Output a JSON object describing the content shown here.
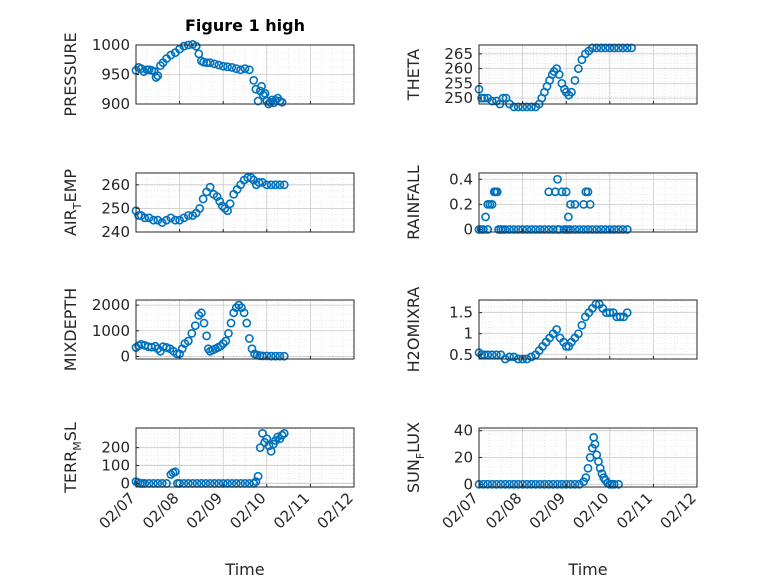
{
  "figure_title": "Figure 1 high",
  "colors": {
    "marker": "#0072bd",
    "axis": "#262626",
    "grid": "#d9d9d9"
  },
  "chart_data": [
    {
      "type": "scatter",
      "ylabel": "PRESSURE",
      "xlim": [
        0,
        5
      ],
      "ylim": [
        900,
        1000
      ],
      "yticks": [
        900,
        950,
        1000
      ],
      "ytick_labels": [
        "900",
        "950",
        "1000"
      ],
      "xticks": [
        0,
        1,
        2,
        3,
        4,
        5
      ],
      "x": [
        0,
        0.06,
        0.12,
        0.18,
        0.25,
        0.3,
        0.36,
        0.42,
        0.46,
        0.5,
        0.56,
        0.62,
        0.7,
        0.8,
        0.9,
        1.0,
        1.1,
        1.2,
        1.3,
        1.38,
        1.44,
        1.5,
        1.55,
        1.62,
        1.7,
        1.8,
        1.9,
        2.0,
        2.1,
        2.2,
        2.3,
        2.4,
        2.5,
        2.6,
        2.7,
        2.75,
        2.8,
        2.85,
        2.88,
        2.92,
        2.96,
        3.0,
        3.04,
        3.08,
        3.12,
        3.16,
        3.2,
        3.25,
        3.3,
        3.35
      ],
      "y": [
        957,
        962,
        960,
        955,
        958,
        958,
        957,
        955,
        945,
        948,
        965,
        970,
        977,
        983,
        987,
        993,
        998,
        1000,
        1001,
        998,
        985,
        973,
        971,
        970,
        970,
        968,
        966,
        964,
        963,
        962,
        960,
        958,
        960,
        958,
        940,
        925,
        905,
        922,
        930,
        915,
        918,
        905,
        900,
        903,
        907,
        902,
        906,
        910,
        905,
        903
      ]
    },
    {
      "type": "scatter",
      "ylabel": "THETA",
      "xlim": [
        0,
        5
      ],
      "ylim": [
        248,
        268
      ],
      "yticks": [
        250,
        255,
        260,
        265
      ],
      "ytick_labels": [
        "250",
        "255",
        "260",
        "265"
      ],
      "xticks": [
        0,
        1,
        2,
        3,
        4,
        5
      ],
      "x": [
        0,
        0.06,
        0.12,
        0.2,
        0.3,
        0.4,
        0.48,
        0.55,
        0.62,
        0.7,
        0.8,
        0.9,
        1.0,
        1.1,
        1.2,
        1.3,
        1.38,
        1.44,
        1.5,
        1.56,
        1.62,
        1.68,
        1.72,
        1.78,
        1.84,
        1.9,
        1.96,
        2.0,
        2.06,
        2.12,
        2.2,
        2.28,
        2.36,
        2.44,
        2.52,
        2.6,
        2.7,
        2.8,
        2.9,
        3.0,
        3.1,
        3.2,
        3.3,
        3.4,
        3.5
      ],
      "y": [
        253,
        250,
        250,
        250,
        249,
        249,
        248,
        250,
        250,
        248,
        247,
        247,
        247,
        247,
        247,
        247,
        248,
        250,
        252,
        254,
        256,
        258,
        259,
        260,
        258,
        255,
        253,
        252,
        251,
        252,
        256,
        260,
        263,
        265,
        266,
        267,
        267,
        267,
        267,
        267,
        267,
        267,
        267,
        267,
        267
      ]
    },
    {
      "type": "scatter",
      "ylabel": "AIR_TEMP",
      "xlim": [
        0,
        5
      ],
      "ylim": [
        240,
        265
      ],
      "yticks": [
        240,
        250,
        260
      ],
      "ytick_labels": [
        "240",
        "250",
        "260"
      ],
      "xticks": [
        0,
        1,
        2,
        3,
        4,
        5
      ],
      "x": [
        0,
        0.06,
        0.12,
        0.2,
        0.3,
        0.4,
        0.5,
        0.6,
        0.7,
        0.8,
        0.9,
        1.0,
        1.1,
        1.2,
        1.3,
        1.38,
        1.46,
        1.54,
        1.62,
        1.7,
        1.78,
        1.86,
        1.92,
        1.98,
        2.04,
        2.1,
        2.16,
        2.24,
        2.32,
        2.4,
        2.48,
        2.56,
        2.64,
        2.7,
        2.76,
        2.82,
        2.9,
        3.0,
        3.1,
        3.2,
        3.3,
        3.4
      ],
      "y": [
        249,
        247,
        247,
        246,
        246,
        245,
        245,
        244,
        245,
        246,
        245,
        245,
        246,
        247,
        247,
        248,
        250,
        254,
        257,
        259,
        256,
        255,
        253,
        251,
        250,
        249,
        252,
        256,
        258,
        260,
        262,
        263,
        263,
        262,
        260,
        261,
        261,
        260,
        260,
        260,
        260,
        260
      ]
    },
    {
      "type": "scatter",
      "ylabel": "RAINFALL",
      "xlim": [
        0,
        5
      ],
      "ylim": [
        -0.02,
        0.45
      ],
      "yticks": [
        0,
        0.2,
        0.4
      ],
      "ytick_labels": [
        "0",
        "0.2",
        "0.4"
      ],
      "xticks": [
        0,
        1,
        2,
        3,
        4,
        5
      ],
      "x": [
        0,
        0.05,
        0.1,
        0.15,
        0.2,
        0.2,
        0.25,
        0.3,
        0.35,
        0.38,
        0.42,
        0.45,
        0.5,
        0.55,
        0.6,
        0.7,
        0.8,
        0.9,
        1.0,
        1.1,
        1.2,
        1.3,
        1.4,
        1.5,
        1.6,
        1.7,
        1.8,
        1.85,
        1.95,
        2.0,
        2.05,
        2.1,
        2.2,
        2.3,
        2.4,
        2.5,
        2.6,
        2.7,
        2.8,
        2.9,
        3.0,
        3.1,
        3.2,
        3.3,
        3.4,
        1.6,
        1.75,
        1.8,
        1.9,
        2.0,
        2.05,
        2.1,
        2.2,
        2.4,
        2.5,
        2.45,
        2.55
      ],
      "y": [
        0,
        0,
        0,
        0.1,
        0.2,
        0,
        0.2,
        0.2,
        0.3,
        0.3,
        0.3,
        0,
        0,
        0,
        0,
        0,
        0,
        0,
        0,
        0,
        0,
        0,
        0,
        0,
        0,
        0,
        0,
        0,
        0,
        0,
        0,
        0,
        0,
        0,
        0,
        0,
        0,
        0,
        0,
        0,
        0,
        0,
        0,
        0,
        0,
        0.3,
        0.3,
        0.4,
        0.3,
        0.3,
        0.1,
        0.2,
        0.2,
        0.2,
        0.3,
        0.3,
        0.2
      ]
    },
    {
      "type": "scatter",
      "ylabel": "MIXDEPTH",
      "xlim": [
        0,
        5
      ],
      "ylim": [
        -100,
        2200
      ],
      "yticks": [
        0,
        1000,
        2000
      ],
      "ytick_labels": [
        "0",
        "1000",
        "2000"
      ],
      "xticks": [
        0,
        1,
        2,
        3,
        4,
        5
      ],
      "x": [
        0,
        0.06,
        0.12,
        0.2,
        0.28,
        0.36,
        0.44,
        0.5,
        0.56,
        0.62,
        0.7,
        0.78,
        0.86,
        0.94,
        1.0,
        1.06,
        1.12,
        1.2,
        1.28,
        1.36,
        1.44,
        1.5,
        1.56,
        1.62,
        1.66,
        1.7,
        1.76,
        1.82,
        1.88,
        1.94,
        2.0,
        2.06,
        2.12,
        2.18,
        2.24,
        2.3,
        2.36,
        2.42,
        2.48,
        2.54,
        2.6,
        2.66,
        2.72,
        2.78,
        2.84,
        2.9,
        3.0,
        3.1,
        3.2,
        3.3,
        3.4
      ],
      "y": [
        350,
        420,
        470,
        430,
        380,
        360,
        400,
        300,
        200,
        380,
        350,
        300,
        200,
        100,
        100,
        300,
        500,
        600,
        900,
        1200,
        1600,
        1700,
        1300,
        800,
        300,
        200,
        250,
        300,
        350,
        400,
        500,
        600,
        900,
        1300,
        1700,
        1900,
        2000,
        1900,
        1700,
        1300,
        700,
        300,
        100,
        50,
        30,
        20,
        20,
        10,
        10,
        10,
        10
      ]
    },
    {
      "type": "scatter",
      "ylabel": "H2OMIXRA",
      "xlim": [
        0,
        5
      ],
      "ylim": [
        0.4,
        1.8
      ],
      "yticks": [
        0.5,
        1,
        1.5
      ],
      "ytick_labels": [
        "0.5",
        "1",
        "1.5"
      ],
      "xticks": [
        0,
        1,
        2,
        3,
        4,
        5
      ],
      "x": [
        0,
        0.06,
        0.12,
        0.2,
        0.3,
        0.4,
        0.5,
        0.6,
        0.7,
        0.8,
        0.9,
        1.0,
        1.1,
        1.2,
        1.3,
        1.38,
        1.46,
        1.54,
        1.62,
        1.7,
        1.78,
        1.86,
        1.94,
        2.0,
        2.06,
        2.12,
        2.2,
        2.28,
        2.36,
        2.44,
        2.52,
        2.6,
        2.68,
        2.76,
        2.84,
        2.92,
        3.0,
        3.08,
        3.16,
        3.24,
        3.32,
        3.4
      ],
      "y": [
        0.55,
        0.5,
        0.5,
        0.5,
        0.5,
        0.5,
        0.5,
        0.4,
        0.45,
        0.45,
        0.4,
        0.4,
        0.4,
        0.45,
        0.5,
        0.6,
        0.7,
        0.8,
        0.9,
        1.0,
        1.1,
        0.9,
        0.8,
        0.7,
        0.7,
        0.8,
        0.9,
        1.0,
        1.2,
        1.4,
        1.5,
        1.6,
        1.7,
        1.7,
        1.6,
        1.5,
        1.5,
        1.5,
        1.4,
        1.4,
        1.4,
        1.5
      ]
    },
    {
      "type": "scatter",
      "ylabel": "TERR_MSL",
      "ylabel_main": "TERR",
      "ylabel_sub": "M",
      "ylabel_rest": "SL",
      "xlim": [
        0,
        5
      ],
      "ylim": [
        -20,
        310
      ],
      "yticks": [
        0,
        100,
        200
      ],
      "ytick_labels": [
        "0",
        "100",
        "200"
      ],
      "xticks": [
        0,
        1,
        2,
        3,
        4,
        5
      ],
      "x": [
        0,
        0.05,
        0.1,
        0.15,
        0.2,
        0.3,
        0.4,
        0.5,
        0.6,
        0.7,
        0.8,
        0.85,
        0.9,
        0.95,
        1.0,
        1.1,
        1.2,
        1.3,
        1.4,
        1.5,
        1.6,
        1.7,
        1.8,
        1.9,
        2.0,
        2.1,
        2.2,
        2.3,
        2.4,
        2.5,
        2.6,
        2.7,
        2.75,
        2.8,
        2.85,
        2.9,
        2.95,
        3.0,
        3.05,
        3.1,
        3.15,
        3.2,
        3.25,
        3.3,
        3.35,
        3.4
      ],
      "y": [
        10,
        5,
        0,
        0,
        0,
        0,
        0,
        0,
        0,
        0,
        50,
        60,
        65,
        0,
        0,
        0,
        0,
        0,
        0,
        0,
        0,
        0,
        0,
        0,
        0,
        0,
        0,
        0,
        0,
        0,
        0,
        0,
        10,
        40,
        200,
        280,
        230,
        250,
        210,
        180,
        220,
        240,
        260,
        250,
        270,
        280
      ]
    },
    {
      "type": "scatter",
      "ylabel": "SUN_FLUX",
      "ylabel_main": "SUN",
      "ylabel_sub": "F",
      "ylabel_rest": "LUX",
      "xlim": [
        0,
        5
      ],
      "ylim": [
        -2,
        42
      ],
      "yticks": [
        0,
        20,
        40
      ],
      "ytick_labels": [
        "0",
        "20",
        "40"
      ],
      "xticks": [
        0,
        1,
        2,
        3,
        4,
        5
      ],
      "x": [
        0,
        0.1,
        0.2,
        0.3,
        0.4,
        0.5,
        0.6,
        0.7,
        0.8,
        0.9,
        1.0,
        1.1,
        1.2,
        1.3,
        1.4,
        1.5,
        1.6,
        1.7,
        1.8,
        1.9,
        2.0,
        2.1,
        2.2,
        2.3,
        2.4,
        2.45,
        2.5,
        2.55,
        2.6,
        2.63,
        2.66,
        2.7,
        2.74,
        2.78,
        2.82,
        2.86,
        2.9,
        2.95,
        3.0,
        3.05,
        3.1,
        3.2
      ],
      "y": [
        0,
        0,
        0,
        0,
        0,
        0,
        0,
        0,
        0,
        0,
        0,
        0,
        0,
        0,
        0,
        0,
        0,
        0,
        0,
        0,
        0,
        0,
        0,
        0,
        2,
        5,
        12,
        20,
        27,
        35,
        30,
        22,
        17,
        12,
        8,
        5,
        3,
        1,
        0,
        0,
        0,
        0
      ]
    }
  ],
  "x_tick_labels": [
    "02/07",
    "02/08",
    "02/09",
    "02/10",
    "02/11",
    "02/12"
  ],
  "xlabel_left": "Time",
  "xlabel_right": "Time",
  "air_temp_label": {
    "main": "AIR",
    "sub": "T",
    "rest": "EMP"
  }
}
